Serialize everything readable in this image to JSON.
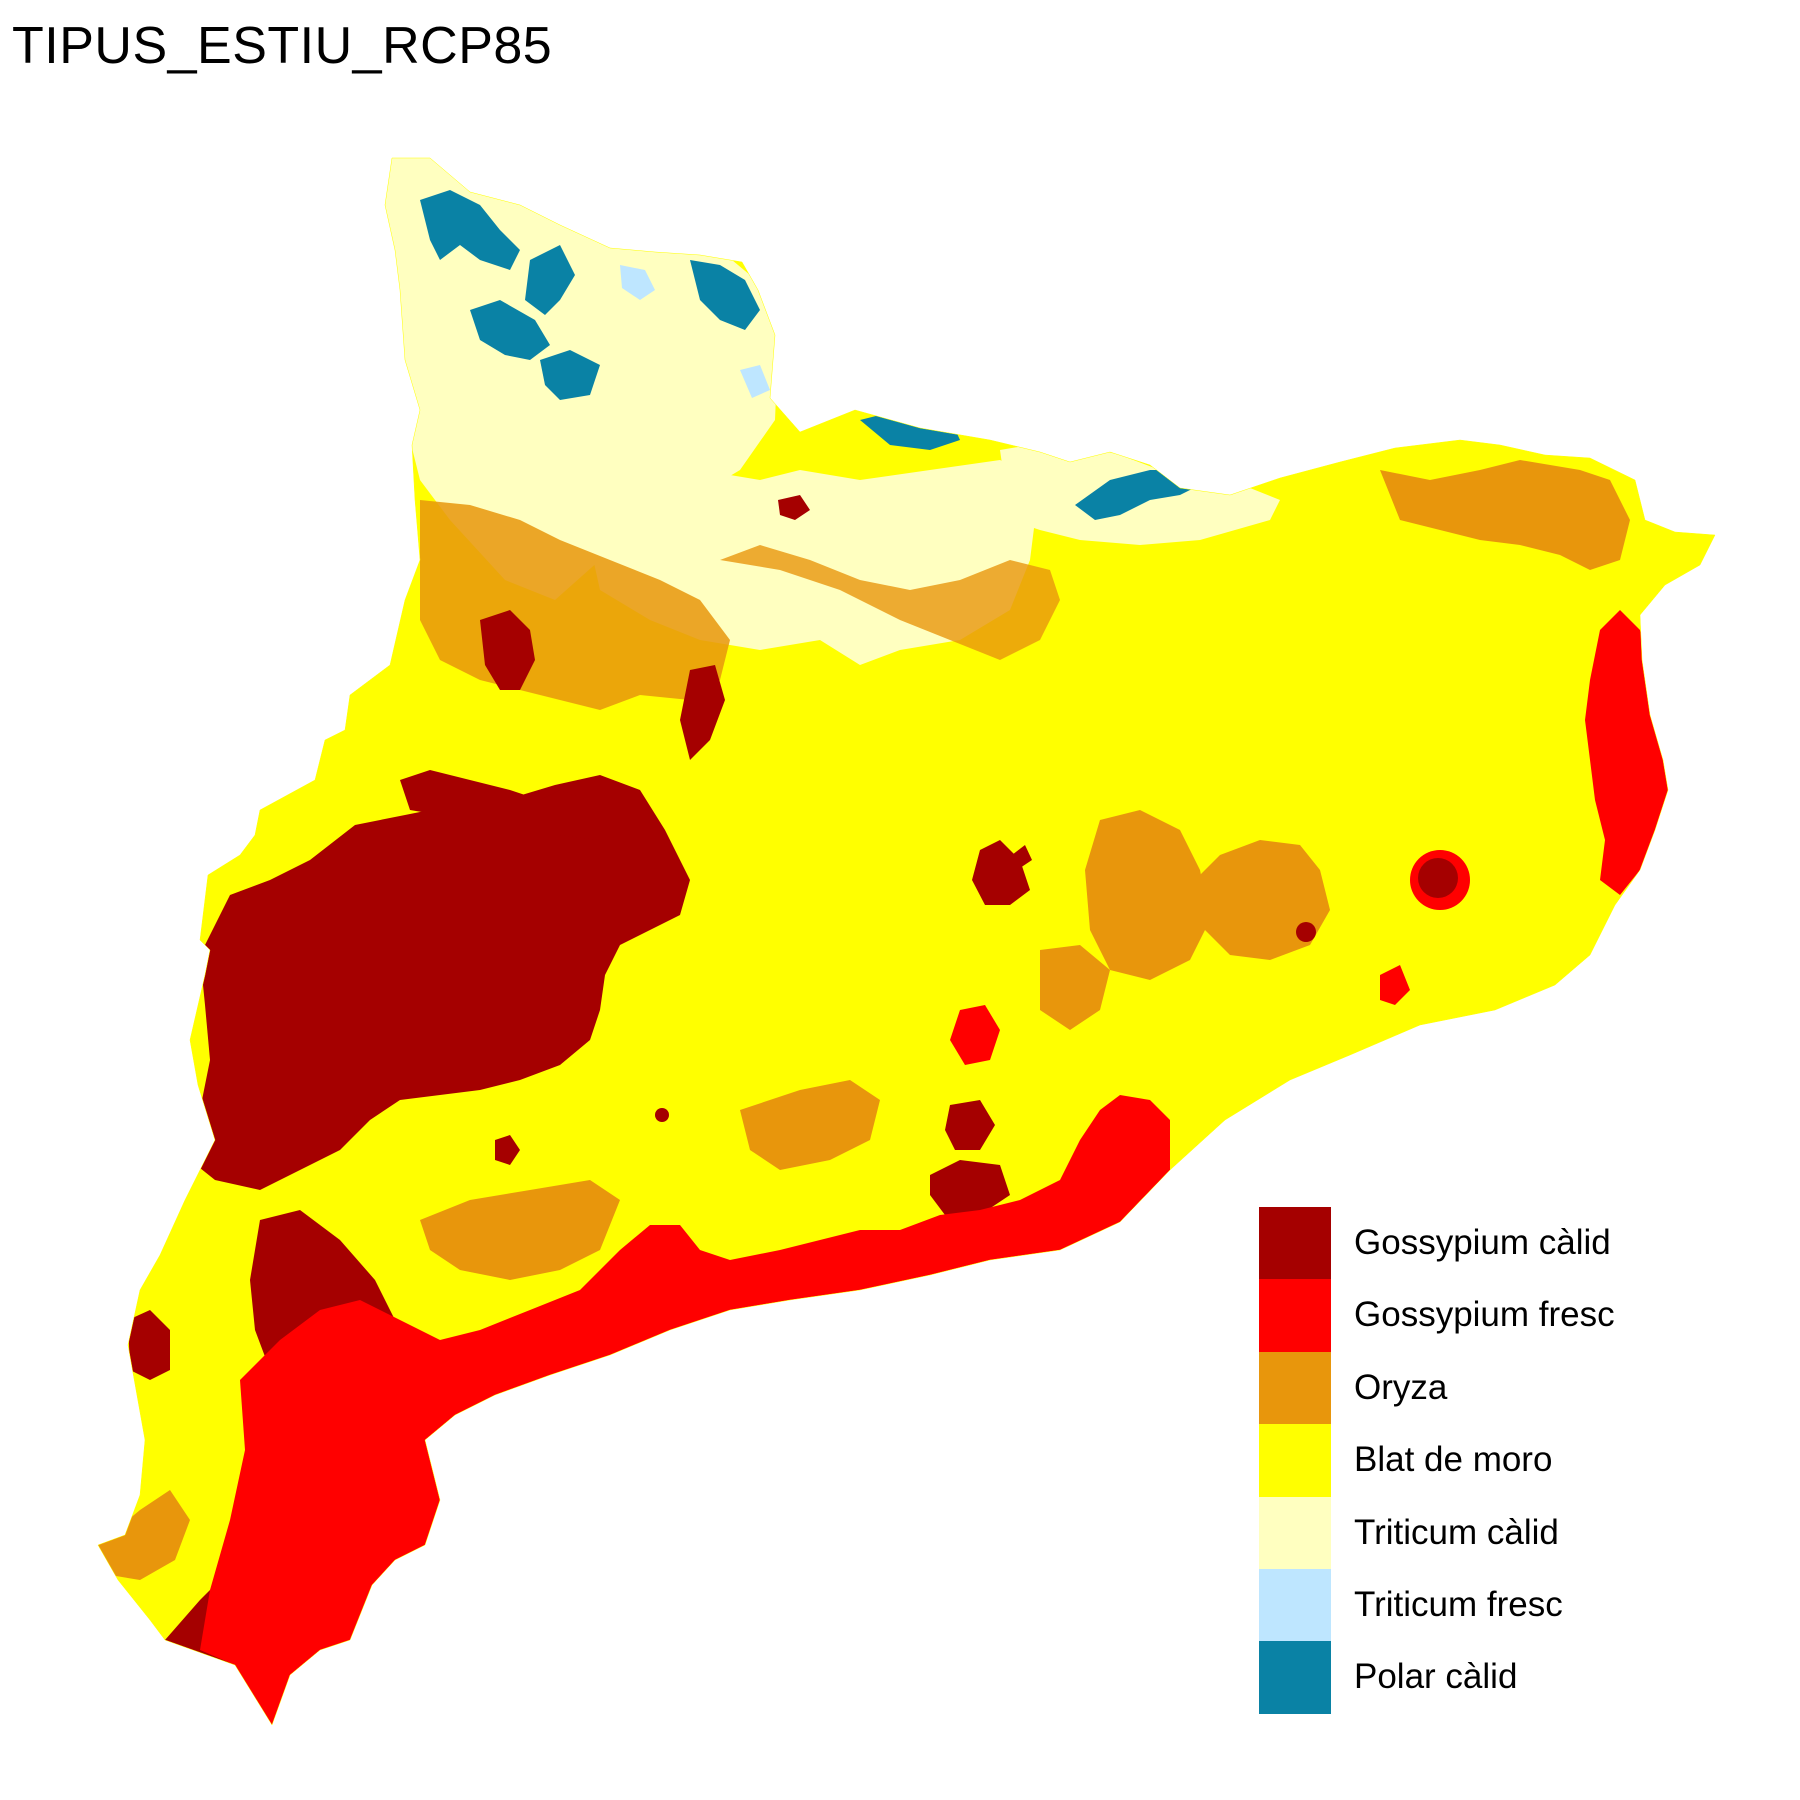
{
  "title": "TIPUS_ESTIU_RCP85",
  "legend": [
    {
      "label": "Gossypium càlid",
      "color": "#a50000"
    },
    {
      "label": "Gossypium fresc",
      "color": "#ff0000"
    },
    {
      "label": "Oryza",
      "color": "#e8960c"
    },
    {
      "label": "Blat de moro",
      "color": "#ffff00"
    },
    {
      "label": "Triticum càlid",
      "color": "#ffffc0"
    },
    {
      "label": "Triticum fresc",
      "color": "#bee6ff"
    },
    {
      "label": "Polar càlid",
      "color": "#0a82a5"
    }
  ]
}
